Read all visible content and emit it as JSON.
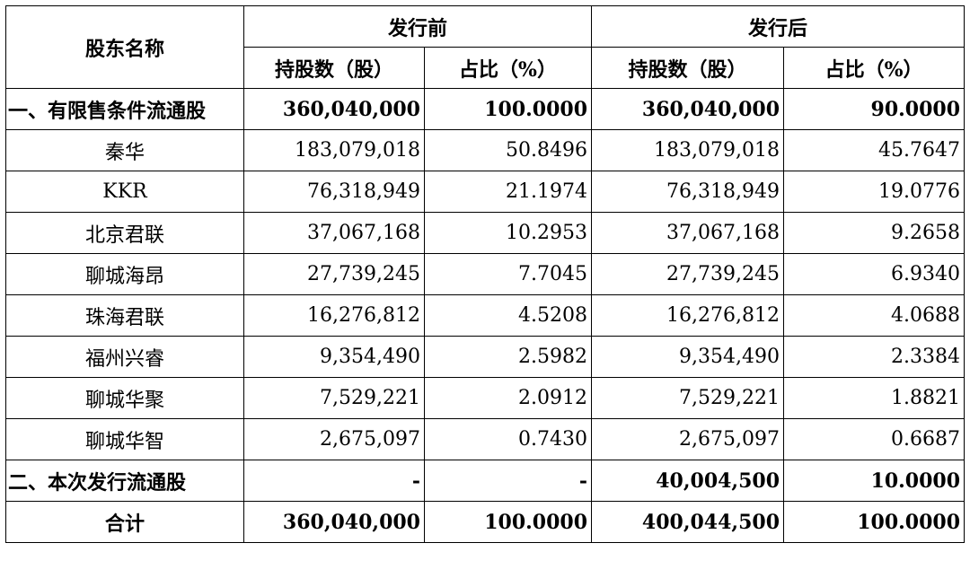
{
  "header": {
    "shareholder_name": "股东名称",
    "before_issue": "发行前",
    "after_issue": "发行后",
    "shares_col": "持股数（股）",
    "ratio_col": "占比（%）"
  },
  "rows": [
    {
      "name": "一、有限售条件流通股",
      "before_shares": "360,040,000",
      "before_ratio": "100.0000",
      "after_shares": "360,040,000",
      "after_ratio": "90.0000",
      "bold": true,
      "align": "left"
    },
    {
      "name": "秦华",
      "before_shares": "183,079,018",
      "before_ratio": "50.8496",
      "after_shares": "183,079,018",
      "after_ratio": "45.7647",
      "bold": false,
      "align": "center"
    },
    {
      "name": "KKR",
      "before_shares": "76,318,949",
      "before_ratio": "21.1974",
      "after_shares": "76,318,949",
      "after_ratio": "19.0776",
      "bold": false,
      "align": "center"
    },
    {
      "name": "北京君联",
      "before_shares": "37,067,168",
      "before_ratio": "10.2953",
      "after_shares": "37,067,168",
      "after_ratio": "9.2658",
      "bold": false,
      "align": "center"
    },
    {
      "name": "聊城海昂",
      "before_shares": "27,739,245",
      "before_ratio": "7.7045",
      "after_shares": "27,739,245",
      "after_ratio": "6.9340",
      "bold": false,
      "align": "center"
    },
    {
      "name": "珠海君联",
      "before_shares": "16,276,812",
      "before_ratio": "4.5208",
      "after_shares": "16,276,812",
      "after_ratio": "4.0688",
      "bold": false,
      "align": "center"
    },
    {
      "name": "福州兴睿",
      "before_shares": "9,354,490",
      "before_ratio": "2.5982",
      "after_shares": "9,354,490",
      "after_ratio": "2.3384",
      "bold": false,
      "align": "center"
    },
    {
      "name": "聊城华聚",
      "before_shares": "7,529,221",
      "before_ratio": "2.0912",
      "after_shares": "7,529,221",
      "after_ratio": "1.8821",
      "bold": false,
      "align": "center"
    },
    {
      "name": "聊城华智",
      "before_shares": "2,675,097",
      "before_ratio": "0.7430",
      "after_shares": "2,675,097",
      "after_ratio": "0.6687",
      "bold": false,
      "align": "center"
    },
    {
      "name": "二、本次发行流通股",
      "before_shares": "-",
      "before_ratio": "-",
      "after_shares": "40,004,500",
      "after_ratio": "10.0000",
      "bold": true,
      "align": "left"
    },
    {
      "name": "合计",
      "before_shares": "360,040,000",
      "before_ratio": "100.0000",
      "after_shares": "400,044,500",
      "after_ratio": "100.0000",
      "bold": true,
      "align": "center"
    }
  ]
}
